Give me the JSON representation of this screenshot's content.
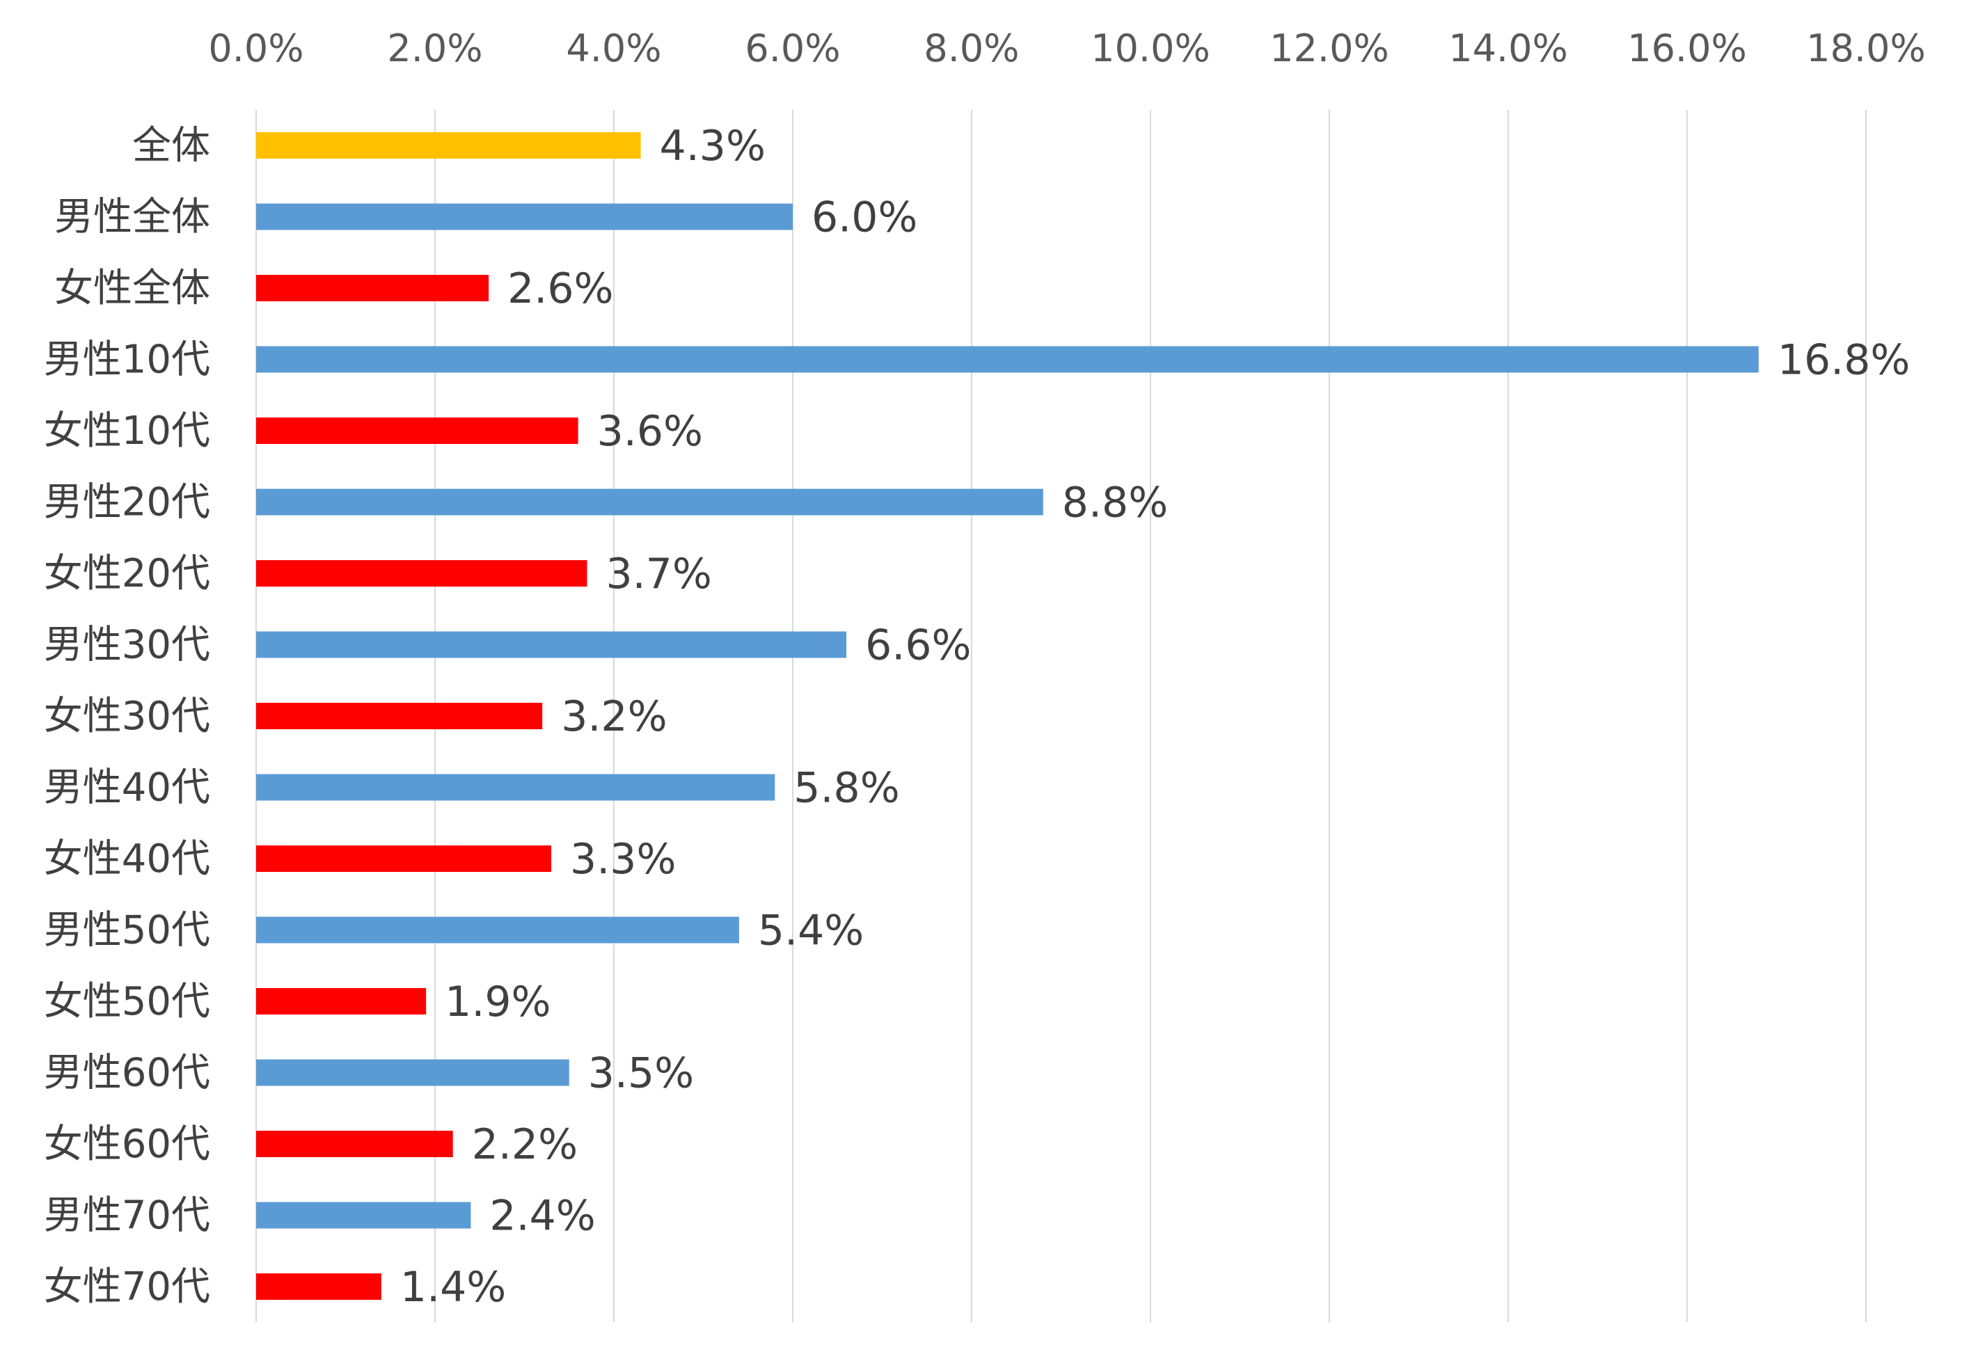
{
  "chart_data": {
    "type": "bar",
    "orientation": "horizontal",
    "categories": [
      "全体",
      "男性全体",
      "女性全体",
      "男性10代",
      "女性10代",
      "男性20代",
      "女性20代",
      "男性30代",
      "女性30代",
      "男性40代",
      "女性40代",
      "男性50代",
      "女性50代",
      "男性60代",
      "女性60代",
      "男性70代",
      "女性70代"
    ],
    "values": [
      4.3,
      6.0,
      2.6,
      16.8,
      3.6,
      8.8,
      3.7,
      6.6,
      3.2,
      5.8,
      3.3,
      5.4,
      1.9,
      3.5,
      2.2,
      2.4,
      1.4
    ],
    "value_labels": [
      "4.3%",
      "6.0%",
      "2.6%",
      "16.8%",
      "3.6%",
      "8.8%",
      "3.7%",
      "6.6%",
      "3.2%",
      "5.8%",
      "3.3%",
      "5.4%",
      "1.9%",
      "3.5%",
      "2.2%",
      "2.4%",
      "1.4%"
    ],
    "bar_colors": [
      "#FFC000",
      "#5B9BD5",
      "#FF0000",
      "#5B9BD5",
      "#FF0000",
      "#5B9BD5",
      "#FF0000",
      "#5B9BD5",
      "#FF0000",
      "#5B9BD5",
      "#FF0000",
      "#5B9BD5",
      "#FF0000",
      "#5B9BD5",
      "#FF0000",
      "#5B9BD5",
      "#FF0000"
    ],
    "x_axis": {
      "position": "top",
      "min": 0,
      "max": 18,
      "ticks": [
        0,
        2,
        4,
        6,
        8,
        10,
        12,
        14,
        16,
        18
      ],
      "tick_labels": [
        "0.0%",
        "2.0%",
        "4.0%",
        "6.0%",
        "8.0%",
        "10.0%",
        "12.0%",
        "14.0%",
        "16.0%",
        "18.0%"
      ]
    },
    "grid": true,
    "legend": "none",
    "colors": {
      "grid": "#D9D9D9",
      "tick_text": "#595959",
      "label_text": "#404040"
    }
  }
}
